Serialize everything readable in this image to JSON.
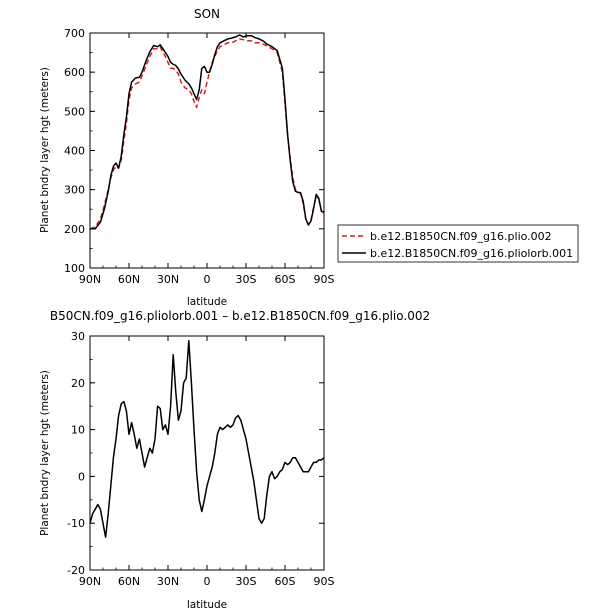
{
  "chart_data": [
    {
      "type": "line",
      "title": "SON",
      "xlabel": "latitude",
      "ylabel": "Planet bndry layer hgt (meters)",
      "xlim": [
        90,
        -90
      ],
      "ylim": [
        100,
        700
      ],
      "xticks": [
        90,
        60,
        30,
        0,
        -30,
        -60,
        -90
      ],
      "xticklabels": [
        "90N",
        "60N",
        "30N",
        "0",
        "30S",
        "60S",
        "90S"
      ],
      "yticks": [
        100,
        200,
        300,
        400,
        500,
        600,
        700
      ],
      "legend": {
        "placement": "right",
        "entries": [
          "b.e12.B1850CN.f09_g16.plio.002",
          "b.e12.B1850CN.f09_g16.pliolorb.001"
        ]
      },
      "series": [
        {
          "name": "b.e12.B1850CN.f09_g16.plio.002",
          "color": "#d62020",
          "dash": "dashed",
          "x": [
            90,
            86,
            82,
            79,
            76,
            74,
            72,
            70,
            68,
            66,
            64,
            62,
            60,
            58,
            55,
            52,
            50,
            47,
            44,
            41,
            38,
            36,
            34,
            32,
            30,
            28,
            26,
            24,
            22,
            20,
            17,
            14,
            12,
            10,
            8,
            6,
            4,
            2,
            0,
            -2,
            -4,
            -6,
            -8,
            -10,
            -13,
            -16,
            -19,
            -22,
            -25,
            -28,
            -31,
            -34,
            -37,
            -40,
            -43,
            -46,
            -50,
            -54,
            -58,
            -60,
            -62,
            -64,
            -66,
            -68,
            -70,
            -72,
            -74,
            -76,
            -78,
            -80,
            -82,
            -84,
            -86,
            -88,
            -90
          ],
          "y": [
            200,
            205,
            225,
            260,
            300,
            330,
            350,
            360,
            355,
            375,
            425,
            470,
            530,
            560,
            570,
            575,
            590,
            615,
            640,
            660,
            660,
            665,
            650,
            640,
            625,
            610,
            610,
            605,
            595,
            575,
            560,
            555,
            545,
            525,
            510,
            535,
            555,
            545,
            575,
            600,
            625,
            640,
            655,
            665,
            670,
            675,
            675,
            680,
            685,
            683,
            680,
            680,
            675,
            675,
            672,
            667,
            660,
            650,
            600,
            520,
            440,
            380,
            330,
            300,
            295,
            290,
            265,
            225,
            210,
            222,
            255,
            285,
            275,
            245,
            240
          ]
        },
        {
          "name": "b.e12.B1850CN.f09_g16.pliolorb.001",
          "color": "#000000",
          "dash": "solid",
          "x": [
            90,
            86,
            82,
            79,
            76,
            74,
            72,
            70,
            68,
            66,
            64,
            62,
            60,
            58,
            55,
            52,
            50,
            47,
            44,
            41,
            38,
            36,
            34,
            32,
            30,
            28,
            26,
            24,
            22,
            20,
            17,
            14,
            12,
            10,
            8,
            6,
            4,
            2,
            0,
            -2,
            -4,
            -6,
            -8,
            -10,
            -13,
            -16,
            -19,
            -22,
            -25,
            -28,
            -31,
            -34,
            -37,
            -40,
            -43,
            -46,
            -50,
            -54,
            -58,
            -60,
            -62,
            -64,
            -66,
            -68,
            -70,
            -72,
            -74,
            -76,
            -78,
            -80,
            -82,
            -84,
            -86,
            -88,
            -90
          ],
          "y": [
            200,
            200,
            217,
            250,
            295,
            335,
            360,
            368,
            355,
            385,
            440,
            485,
            545,
            575,
            585,
            587,
            600,
            628,
            652,
            668,
            665,
            670,
            660,
            650,
            640,
            625,
            620,
            617,
            608,
            595,
            580,
            570,
            560,
            545,
            530,
            555,
            610,
            615,
            600,
            600,
            620,
            645,
            665,
            675,
            680,
            685,
            687,
            690,
            695,
            690,
            693,
            693,
            688,
            685,
            680,
            672,
            665,
            655,
            610,
            530,
            440,
            375,
            320,
            296,
            293,
            292,
            270,
            225,
            210,
            220,
            252,
            288,
            278,
            245,
            243
          ]
        }
      ]
    },
    {
      "type": "line",
      "title": "B50CN.f09_g16.pliolorb.001 – b.e12.B1850CN.f09_g16.plio.002",
      "xlabel": "latitude",
      "ylabel": "Planet bndry layer hgt (meters)",
      "xlim": [
        90,
        -90
      ],
      "ylim": [
        -20,
        30
      ],
      "xticks": [
        90,
        60,
        30,
        0,
        -30,
        -60,
        -90
      ],
      "xticklabels": [
        "90N",
        "60N",
        "30N",
        "0",
        "30S",
        "60S",
        "90S"
      ],
      "yticks": [
        -20,
        -10,
        0,
        10,
        20,
        30
      ],
      "series": [
        {
          "color": "#000000",
          "x": [
            90,
            88,
            86,
            84,
            82,
            80,
            78,
            76,
            74,
            72,
            70,
            68,
            66,
            64,
            62,
            60,
            58,
            56,
            54,
            52,
            50,
            48,
            46,
            44,
            42,
            40,
            38,
            36,
            34,
            32,
            30,
            28,
            26,
            24,
            22,
            20,
            18,
            16,
            14,
            12,
            10,
            8,
            6,
            4,
            2,
            0,
            -2,
            -4,
            -6,
            -8,
            -10,
            -12,
            -14,
            -16,
            -18,
            -20,
            -22,
            -24,
            -26,
            -28,
            -30,
            -32,
            -34,
            -36,
            -38,
            -40,
            -42,
            -44,
            -46,
            -48,
            -50,
            -52,
            -54,
            -56,
            -58,
            -60,
            -62,
            -64,
            -66,
            -68,
            -70,
            -72,
            -74,
            -76,
            -78,
            -80,
            -82,
            -84,
            -86,
            -88,
            -90
          ],
          "y": [
            -10,
            -8,
            -7,
            -6,
            -7,
            -10,
            -13,
            -8,
            -2,
            4,
            8,
            13,
            15.5,
            16,
            14,
            9,
            11.5,
            9,
            6,
            8,
            5,
            2,
            4,
            6,
            5,
            8,
            15,
            14.5,
            10,
            11,
            9,
            15,
            26,
            18,
            12,
            14,
            20,
            21,
            29,
            20,
            10,
            1,
            -5,
            -7.5,
            -5,
            -2,
            0,
            2,
            5,
            9,
            10.5,
            10,
            10.5,
            11,
            10.5,
            11,
            12.5,
            13,
            12,
            10,
            8,
            5,
            2,
            -1,
            -5,
            -9,
            -10,
            -9,
            -4,
            0,
            1,
            -0.5,
            0,
            1,
            1.5,
            3,
            2.5,
            3,
            4,
            4,
            3,
            2,
            1,
            1,
            1,
            2,
            3,
            3,
            3.5,
            3.5,
            4
          ]
        }
      ]
    }
  ]
}
